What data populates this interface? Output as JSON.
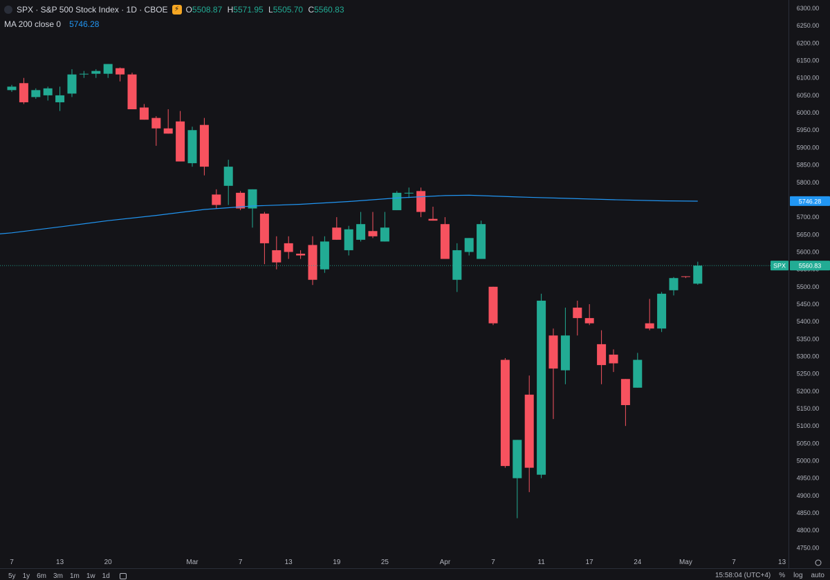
{
  "header": {
    "symbol_line": "SPX · S&P 500 Stock Index · 1D · CBOE",
    "ohlc": [
      {
        "key": "O",
        "value": "5508.87"
      },
      {
        "key": "H",
        "value": "5571.95"
      },
      {
        "key": "L",
        "value": "5505.70"
      },
      {
        "key": "C",
        "value": "5560.83"
      }
    ],
    "ma_label": "MA 200 close 0",
    "ma_value": "5746.28"
  },
  "chart_data": {
    "type": "candlestick",
    "colors": {
      "up": "#22ab94",
      "down": "#f7525f",
      "ma": "#2196f3",
      "background": "#141418"
    },
    "ylim": [
      4725,
      6310
    ],
    "y_ticks": [
      "6300.00",
      "6250.00",
      "6200.00",
      "6150.00",
      "6100.00",
      "6050.00",
      "6000.00",
      "5950.00",
      "5900.00",
      "5850.00",
      "5800.00",
      "5750.00",
      "5700.00",
      "5650.00",
      "5600.00",
      "5550.00",
      "5500.00",
      "5450.00",
      "5400.00",
      "5350.00",
      "5300.00",
      "5250.00",
      "5200.00",
      "5150.00",
      "5100.00",
      "5050.00",
      "5000.00",
      "4950.00",
      "4900.00",
      "4850.00",
      "4800.00",
      "4750.00"
    ],
    "x_ticks": [
      {
        "label": "7",
        "i": 0
      },
      {
        "label": "13",
        "i": 4
      },
      {
        "label": "20",
        "i": 8
      },
      {
        "label": "Mar",
        "i": 15
      },
      {
        "label": "7",
        "i": 19
      },
      {
        "label": "13",
        "i": 23
      },
      {
        "label": "19",
        "i": 27
      },
      {
        "label": "25",
        "i": 31
      },
      {
        "label": "Apr",
        "i": 36
      },
      {
        "label": "7",
        "i": 40
      },
      {
        "label": "11",
        "i": 44
      },
      {
        "label": "17",
        "i": 48
      },
      {
        "label": "24",
        "i": 52
      },
      {
        "label": "May",
        "i": 56
      },
      {
        "label": "7",
        "i": 60
      },
      {
        "label": "13",
        "i": 64
      }
    ],
    "candles": [
      {
        "o": 6065,
        "h": 6080,
        "l": 6060,
        "c": 6075
      },
      {
        "o": 6085,
        "h": 6100,
        "l": 6025,
        "c": 6030
      },
      {
        "o": 6045,
        "h": 6070,
        "l": 6040,
        "c": 6065
      },
      {
        "o": 6050,
        "h": 6075,
        "l": 6035,
        "c": 6070
      },
      {
        "o": 6030,
        "h": 6075,
        "l": 6005,
        "c": 6050
      },
      {
        "o": 6055,
        "h": 6125,
        "l": 6045,
        "c": 6110
      },
      {
        "o": 6110,
        "h": 6120,
        "l": 6100,
        "c": 6112
      },
      {
        "o": 6112,
        "h": 6125,
        "l": 6100,
        "c": 6120
      },
      {
        "o": 6112,
        "h": 6140,
        "l": 6100,
        "c": 6140
      },
      {
        "o": 6128,
        "h": 6130,
        "l": 6090,
        "c": 6110
      },
      {
        "o": 6110,
        "h": 6115,
        "l": 6010,
        "c": 6010
      },
      {
        "o": 6015,
        "h": 6025,
        "l": 5980,
        "c": 5980
      },
      {
        "o": 5985,
        "h": 5990,
        "l": 5905,
        "c": 5955
      },
      {
        "o": 5955,
        "h": 6010,
        "l": 5940,
        "c": 5940
      },
      {
        "o": 5975,
        "h": 6005,
        "l": 5860,
        "c": 5860
      },
      {
        "o": 5855,
        "h": 5960,
        "l": 5845,
        "c": 5950
      },
      {
        "o": 5965,
        "h": 5985,
        "l": 5820,
        "c": 5845
      },
      {
        "o": 5765,
        "h": 5780,
        "l": 5725,
        "c": 5735
      },
      {
        "o": 5790,
        "h": 5865,
        "l": 5735,
        "c": 5845
      },
      {
        "o": 5770,
        "h": 5775,
        "l": 5720,
        "c": 5725
      },
      {
        "o": 5725,
        "h": 5780,
        "l": 5670,
        "c": 5780
      },
      {
        "o": 5710,
        "h": 5715,
        "l": 5565,
        "c": 5625
      },
      {
        "o": 5605,
        "h": 5645,
        "l": 5550,
        "c": 5570
      },
      {
        "o": 5625,
        "h": 5645,
        "l": 5580,
        "c": 5600
      },
      {
        "o": 5595,
        "h": 5605,
        "l": 5580,
        "c": 5590
      },
      {
        "o": 5620,
        "h": 5645,
        "l": 5505,
        "c": 5520
      },
      {
        "o": 5550,
        "h": 5645,
        "l": 5540,
        "c": 5630
      },
      {
        "o": 5670,
        "h": 5700,
        "l": 5635,
        "c": 5635
      },
      {
        "o": 5605,
        "h": 5675,
        "l": 5590,
        "c": 5665
      },
      {
        "o": 5635,
        "h": 5715,
        "l": 5630,
        "c": 5680
      },
      {
        "o": 5660,
        "h": 5715,
        "l": 5640,
        "c": 5645
      },
      {
        "o": 5630,
        "h": 5715,
        "l": 5630,
        "c": 5670
      },
      {
        "o": 5720,
        "h": 5775,
        "l": 5720,
        "c": 5770
      },
      {
        "o": 5770,
        "h": 5785,
        "l": 5755,
        "c": 5770
      },
      {
        "o": 5775,
        "h": 5785,
        "l": 5700,
        "c": 5715
      },
      {
        "o": 5695,
        "h": 5730,
        "l": 5690,
        "c": 5690
      },
      {
        "o": 5680,
        "h": 5700,
        "l": 5580,
        "c": 5580
      },
      {
        "o": 5520,
        "h": 5625,
        "l": 5485,
        "c": 5605
      },
      {
        "o": 5600,
        "h": 5640,
        "l": 5590,
        "c": 5640
      },
      {
        "o": 5580,
        "h": 5690,
        "l": 5580,
        "c": 5680
      },
      {
        "o": 5500,
        "h": 5500,
        "l": 5390,
        "c": 5395
      },
      {
        "o": 5290,
        "h": 5295,
        "l": 4980,
        "c": 4985
      },
      {
        "o": 4950,
        "h": 5060,
        "l": 4835,
        "c": 5060
      },
      {
        "o": 5190,
        "h": 5245,
        "l": 4910,
        "c": 4980
      },
      {
        "o": 4960,
        "h": 5480,
        "l": 4950,
        "c": 5460
      },
      {
        "o": 5360,
        "h": 5380,
        "l": 5120,
        "c": 5265
      },
      {
        "o": 5260,
        "h": 5440,
        "l": 5220,
        "c": 5360
      },
      {
        "o": 5440,
        "h": 5460,
        "l": 5360,
        "c": 5410
      },
      {
        "o": 5410,
        "h": 5450,
        "l": 5390,
        "c": 5395
      },
      {
        "o": 5335,
        "h": 5375,
        "l": 5220,
        "c": 5275
      },
      {
        "o": 5305,
        "h": 5320,
        "l": 5255,
        "c": 5280
      },
      {
        "o": 5235,
        "h": 5235,
        "l": 5100,
        "c": 5160
      },
      {
        "o": 5210,
        "h": 5310,
        "l": 5210,
        "c": 5290
      },
      {
        "o": 5395,
        "h": 5465,
        "l": 5375,
        "c": 5380
      },
      {
        "o": 5380,
        "h": 5485,
        "l": 5370,
        "c": 5480
      },
      {
        "o": 5490,
        "h": 5528,
        "l": 5475,
        "c": 5525
      },
      {
        "o": 5530,
        "h": 5530,
        "l": 5525,
        "c": 5528
      },
      {
        "o": 5508.87,
        "h": 5571.95,
        "l": 5505.7,
        "c": 5560.83
      }
    ],
    "ma200": {
      "name": "MA 200 close 0",
      "points": [
        [
          -1,
          5652
        ],
        [
          0,
          5655
        ],
        [
          4,
          5672
        ],
        [
          8,
          5690
        ],
        [
          12,
          5705
        ],
        [
          16,
          5722
        ],
        [
          20,
          5732
        ],
        [
          24,
          5737
        ],
        [
          28,
          5745
        ],
        [
          32,
          5755
        ],
        [
          36,
          5762
        ],
        [
          38,
          5763
        ],
        [
          42,
          5758
        ],
        [
          46,
          5754
        ],
        [
          50,
          5750
        ],
        [
          54,
          5747
        ],
        [
          57,
          5746
        ]
      ]
    },
    "last_price_label": "SPX",
    "last_price": "5560.83",
    "ma_price_label": "5746.28"
  },
  "footer": {
    "ranges": [
      "5y",
      "1y",
      "6m",
      "3m",
      "1m",
      "1w",
      "1d"
    ],
    "time": "15:58:04 (UTC+4)",
    "percent": "%",
    "log": "log",
    "auto": "auto"
  }
}
